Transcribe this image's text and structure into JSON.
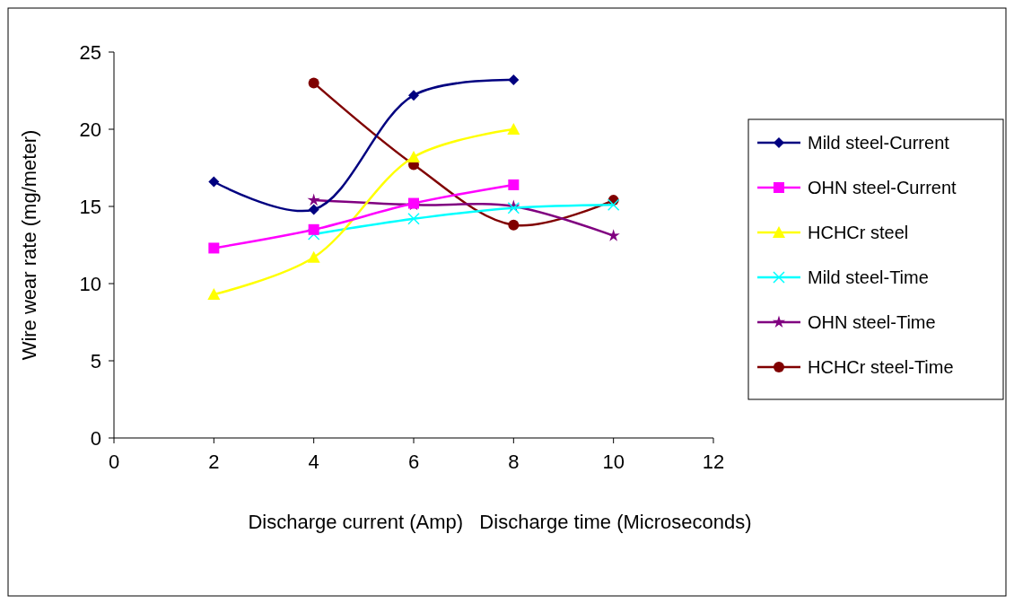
{
  "chart_data": {
    "type": "line",
    "xlabel": "Discharge current (Amp)   Discharge time (Microseconds)",
    "ylabel": "Wire wear rate (mg/meter)",
    "xlim": [
      0,
      12
    ],
    "xticks": [
      0,
      2,
      4,
      6,
      8,
      10,
      12
    ],
    "ylim": [
      0,
      25
    ],
    "yticks": [
      0,
      5,
      10,
      15,
      20,
      25
    ],
    "grid": false,
    "legend": "right",
    "series": [
      {
        "name": "Mild steel-Current",
        "color": "#000080",
        "marker": "diamond",
        "x": [
          2,
          4,
          6,
          8
        ],
        "values": [
          16.6,
          14.8,
          22.2,
          23.2
        ]
      },
      {
        "name": "OHN steel-Current",
        "color": "#ff00ff",
        "marker": "square",
        "x": [
          2,
          4,
          6,
          8
        ],
        "values": [
          12.3,
          13.5,
          15.2,
          16.4
        ]
      },
      {
        "name": "HCHCr steel",
        "color": "#ffff00",
        "marker": "triangle",
        "x": [
          2,
          4,
          6,
          8
        ],
        "values": [
          9.3,
          11.7,
          18.2,
          20.0
        ]
      },
      {
        "name": "Mild steel-Time",
        "color": "#00ffff",
        "marker": "cross",
        "x": [
          4,
          6,
          8,
          10
        ],
        "values": [
          13.2,
          14.2,
          14.9,
          15.1
        ]
      },
      {
        "name": "OHN steel-Time",
        "color": "#800080",
        "marker": "star",
        "x": [
          4,
          6,
          8,
          10
        ],
        "values": [
          15.4,
          15.1,
          15.0,
          13.1
        ]
      },
      {
        "name": "HCHCr steel-Time",
        "color": "#800000",
        "marker": "circle",
        "x": [
          4,
          6,
          8,
          10
        ],
        "values": [
          23.0,
          17.7,
          13.8,
          15.4
        ]
      }
    ]
  }
}
